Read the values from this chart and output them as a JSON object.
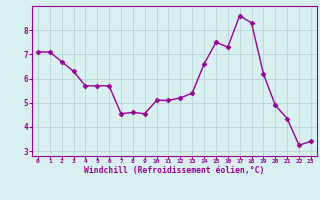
{
  "x": [
    0,
    1,
    2,
    3,
    4,
    5,
    6,
    7,
    8,
    9,
    10,
    11,
    12,
    13,
    14,
    15,
    16,
    17,
    18,
    19,
    20,
    21,
    22,
    23
  ],
  "y": [
    7.1,
    7.1,
    6.7,
    6.3,
    5.7,
    5.7,
    5.7,
    4.55,
    4.6,
    4.55,
    5.1,
    5.1,
    5.2,
    5.4,
    6.6,
    7.5,
    7.3,
    8.6,
    8.3,
    6.2,
    4.9,
    4.35,
    3.25,
    3.4
  ],
  "line_color": "#990099",
  "marker": "D",
  "markersize": 2.5,
  "linewidth": 1.0,
  "bg_color": "#d8f0f0",
  "grid_color": "#b8d4d4",
  "xlabel": "Windchill (Refroidissement éolien,°C)",
  "xlim": [
    -0.5,
    23.5
  ],
  "ylim": [
    2.8,
    9.0
  ],
  "yticks": [
    3,
    4,
    5,
    6,
    7,
    8
  ],
  "xticks": [
    0,
    1,
    2,
    3,
    4,
    5,
    6,
    7,
    8,
    9,
    10,
    11,
    12,
    13,
    14,
    15,
    16,
    17,
    18,
    19,
    20,
    21,
    22,
    23
  ],
  "tick_color": "#990099",
  "label_color": "#990099",
  "spine_color": "#990099"
}
